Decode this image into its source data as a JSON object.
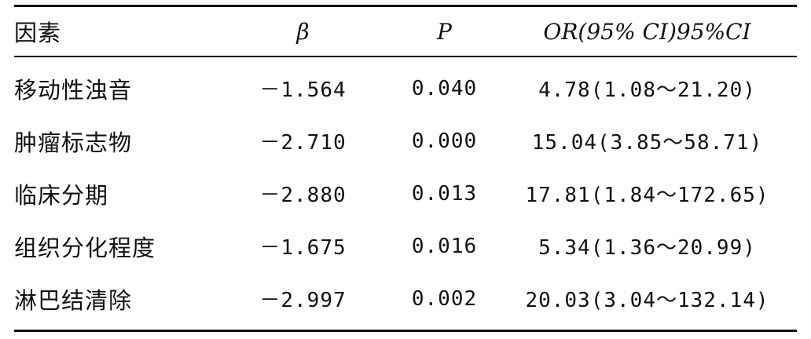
{
  "table": {
    "headers": {
      "factor": "因素",
      "beta": "β",
      "p": "P",
      "or": "OR(95% CI)95%CI"
    },
    "rows": [
      {
        "factor": "移动性浊音",
        "beta": "－1.564",
        "p": "0.040",
        "or": "4.78(1.08～21.20)"
      },
      {
        "factor": "肿瘤标志物",
        "beta": "－2.710",
        "p": "0.000",
        "or": "15.04(3.85～58.71)"
      },
      {
        "factor": "临床分期",
        "beta": "－2.880",
        "p": "0.013",
        "or": "17.81(1.84～172.65)"
      },
      {
        "factor": "组织分化程度",
        "beta": "－1.675",
        "p": "0.016",
        "or": "5.34(1.36～20.99)"
      },
      {
        "factor": "淋巴结清除",
        "beta": "－2.997",
        "p": "0.002",
        "or": "20.03(3.04～132.14)"
      }
    ]
  }
}
